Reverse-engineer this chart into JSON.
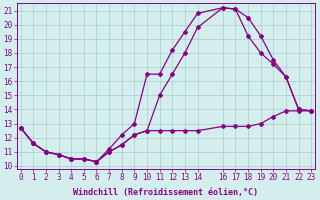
{
  "xlabel": "Windchill (Refroidissement éolien,°C)",
  "background_color": "#d4eeee",
  "line_color": "#880088",
  "grid_color": "#aacccc",
  "xticks": [
    0,
    1,
    2,
    3,
    4,
    5,
    6,
    7,
    8,
    9,
    10,
    11,
    12,
    13,
    14,
    16,
    17,
    18,
    19,
    20,
    21,
    22,
    23
  ],
  "xlim": [
    -0.3,
    23.3
  ],
  "ylim": [
    9.8,
    21.5
  ],
  "yticks": [
    10,
    11,
    12,
    13,
    14,
    15,
    16,
    17,
    18,
    19,
    20,
    21
  ],
  "line1_x": [
    0,
    1,
    2,
    3,
    4,
    5,
    6,
    7,
    8,
    9,
    10,
    11,
    12,
    13,
    14,
    16,
    17,
    18,
    19,
    20,
    21,
    22,
    23
  ],
  "line1_y": [
    12.7,
    11.6,
    11.0,
    10.8,
    10.5,
    10.5,
    10.3,
    11.2,
    12.2,
    13.0,
    16.5,
    16.5,
    18.2,
    19.5,
    20.8,
    21.2,
    21.1,
    19.2,
    18.0,
    17.2,
    16.3,
    14.0,
    13.9
  ],
  "line2_x": [
    0,
    1,
    2,
    3,
    4,
    5,
    6,
    7,
    8,
    9,
    10,
    11,
    12,
    13,
    14,
    16,
    17,
    18,
    19,
    20,
    21,
    22,
    23
  ],
  "line2_y": [
    12.7,
    11.6,
    11.0,
    10.8,
    10.5,
    10.5,
    10.3,
    11.0,
    11.5,
    12.2,
    12.5,
    15.0,
    16.5,
    18.0,
    19.8,
    21.2,
    21.1,
    20.5,
    19.2,
    17.5,
    16.3,
    14.0,
    13.9
  ],
  "line3_x": [
    0,
    1,
    2,
    3,
    4,
    5,
    6,
    7,
    8,
    9,
    10,
    11,
    12,
    13,
    14,
    16,
    17,
    18,
    19,
    20,
    21,
    22,
    23
  ],
  "line3_y": [
    12.7,
    11.6,
    11.0,
    10.8,
    10.5,
    10.5,
    10.3,
    11.0,
    11.5,
    12.2,
    12.5,
    12.5,
    12.5,
    12.5,
    12.5,
    12.8,
    12.8,
    12.8,
    13.0,
    13.5,
    13.9,
    13.9,
    13.9
  ],
  "tick_fontsize": 5.5,
  "label_fontsize": 6.0,
  "marker": "D",
  "markersize": 2.0,
  "linewidth": 0.9
}
